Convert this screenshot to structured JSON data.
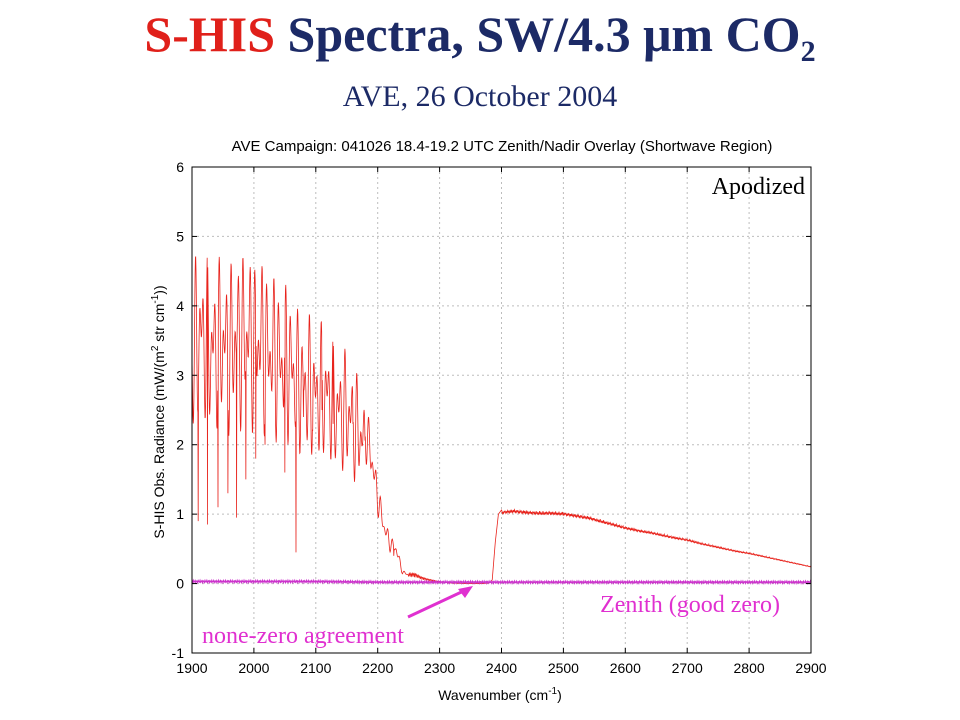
{
  "slide": {
    "title_part1": "S-HIS",
    "title_part2": "Spectra, SW/4.3 μm CO",
    "title_subscript": "2",
    "subtitle": "AVE, 26 October 2004"
  },
  "chart_data": {
    "type": "line",
    "title": "AVE Campaign: 041026 18.4-19.2 UTC Zenith/Nadir Overlay (Shortwave Region)",
    "xlabel": "Wavenumber (cm",
    "xlabel_sup": "-1",
    "xlabel_suffix": ")",
    "ylabel": "S-HIS Obs. Radiance (mW/(m",
    "ylabel_sup1": "2",
    "ylabel_mid": " str cm",
    "ylabel_sup2": "-1",
    "ylabel_suffix": "))",
    "xlim": [
      1900,
      2900
    ],
    "ylim": [
      -1,
      6
    ],
    "xticks": [
      1900,
      2000,
      2100,
      2200,
      2300,
      2400,
      2500,
      2600,
      2700,
      2800,
      2900
    ],
    "yticks": [
      -1,
      0,
      1,
      2,
      3,
      4,
      5,
      6
    ],
    "grid": true,
    "series": [
      {
        "color": "#e8231c",
        "x": [
          1900,
          1910,
          1920,
          1930,
          1940,
          1950,
          1960,
          1970,
          1980,
          1990,
          2000,
          2010,
          2020,
          2030,
          2040,
          2050,
          2060,
          2070,
          2080,
          2090,
          2100,
          2110,
          2120,
          2130,
          2140,
          2150,
          2160,
          2170,
          2180,
          2190,
          2200,
          2210,
          2220,
          2230,
          2240,
          2250,
          2260,
          2270,
          2280,
          2290,
          2300,
          2320,
          2340,
          2360,
          2370,
          2380,
          2385,
          2390,
          2395,
          2400,
          2420,
          2440,
          2460,
          2480,
          2500,
          2520,
          2540,
          2560,
          2580,
          2600,
          2620,
          2640,
          2660,
          2680,
          2700,
          2720,
          2740,
          2760,
          2780,
          2800,
          2820,
          2840,
          2860,
          2880,
          2900
        ],
        "values": [
          4.5,
          4.9,
          4.9,
          4.6,
          4.7,
          4.8,
          4.6,
          4.9,
          4.8,
          5.0,
          4.7,
          4.9,
          4.6,
          4.6,
          4.4,
          4.4,
          4.3,
          4.0,
          3.9,
          3.9,
          3.7,
          3.8,
          3.7,
          3.5,
          3.4,
          3.4,
          3.2,
          3.0,
          2.7,
          2.2,
          1.5,
          1.0,
          0.7,
          0.6,
          0.2,
          0.15,
          0.15,
          0.1,
          0.07,
          0.05,
          0.03,
          0.01,
          0.0,
          0.0,
          0.0,
          0.01,
          0.05,
          0.6,
          1.0,
          1.06,
          1.08,
          1.06,
          1.05,
          1.05,
          1.04,
          1.01,
          0.98,
          0.93,
          0.88,
          0.83,
          0.79,
          0.76,
          0.72,
          0.68,
          0.65,
          0.6,
          0.56,
          0.52,
          0.48,
          0.45,
          0.41,
          0.37,
          0.33,
          0.29,
          0.25
        ]
      },
      {
        "color": "#cc33cc",
        "x": [
          1900,
          2000,
          2100,
          2200,
          2300,
          2400,
          2500,
          2600,
          2700,
          2800,
          2900
        ],
        "values": [
          0.03,
          0.03,
          0.03,
          0.02,
          0.02,
          0.02,
          0.02,
          0.02,
          0.02,
          0.02,
          0.02
        ]
      }
    ],
    "annotations": {
      "apodized": "Apodized",
      "zenith": "Zenith (good zero)",
      "nonzero": "none-zero agreement"
    },
    "annotation_colors": {
      "apodized": "#000000",
      "zenith": "#e030d0",
      "nonzero": "#e030d0",
      "arrow": "#e030d0"
    },
    "nadir_absorption_lines": [
      [
        1910,
        0.9
      ],
      [
        1925,
        0.85
      ],
      [
        1942,
        1.1
      ],
      [
        1958,
        1.3
      ],
      [
        1972,
        0.95
      ],
      [
        1987,
        1.5
      ],
      [
        2003,
        1.8
      ],
      [
        2018,
        2.0
      ],
      [
        2035,
        2.3
      ],
      [
        2050,
        1.6
      ],
      [
        2068,
        0.45
      ],
      [
        2080,
        2.4
      ],
      [
        2095,
        2.2
      ],
      [
        2110,
        2.5
      ],
      [
        2128,
        2.3
      ],
      [
        2145,
        2.4
      ],
      [
        2160,
        2.3
      ],
      [
        2175,
        2.0
      ],
      [
        2226,
        0.4
      ]
    ]
  }
}
